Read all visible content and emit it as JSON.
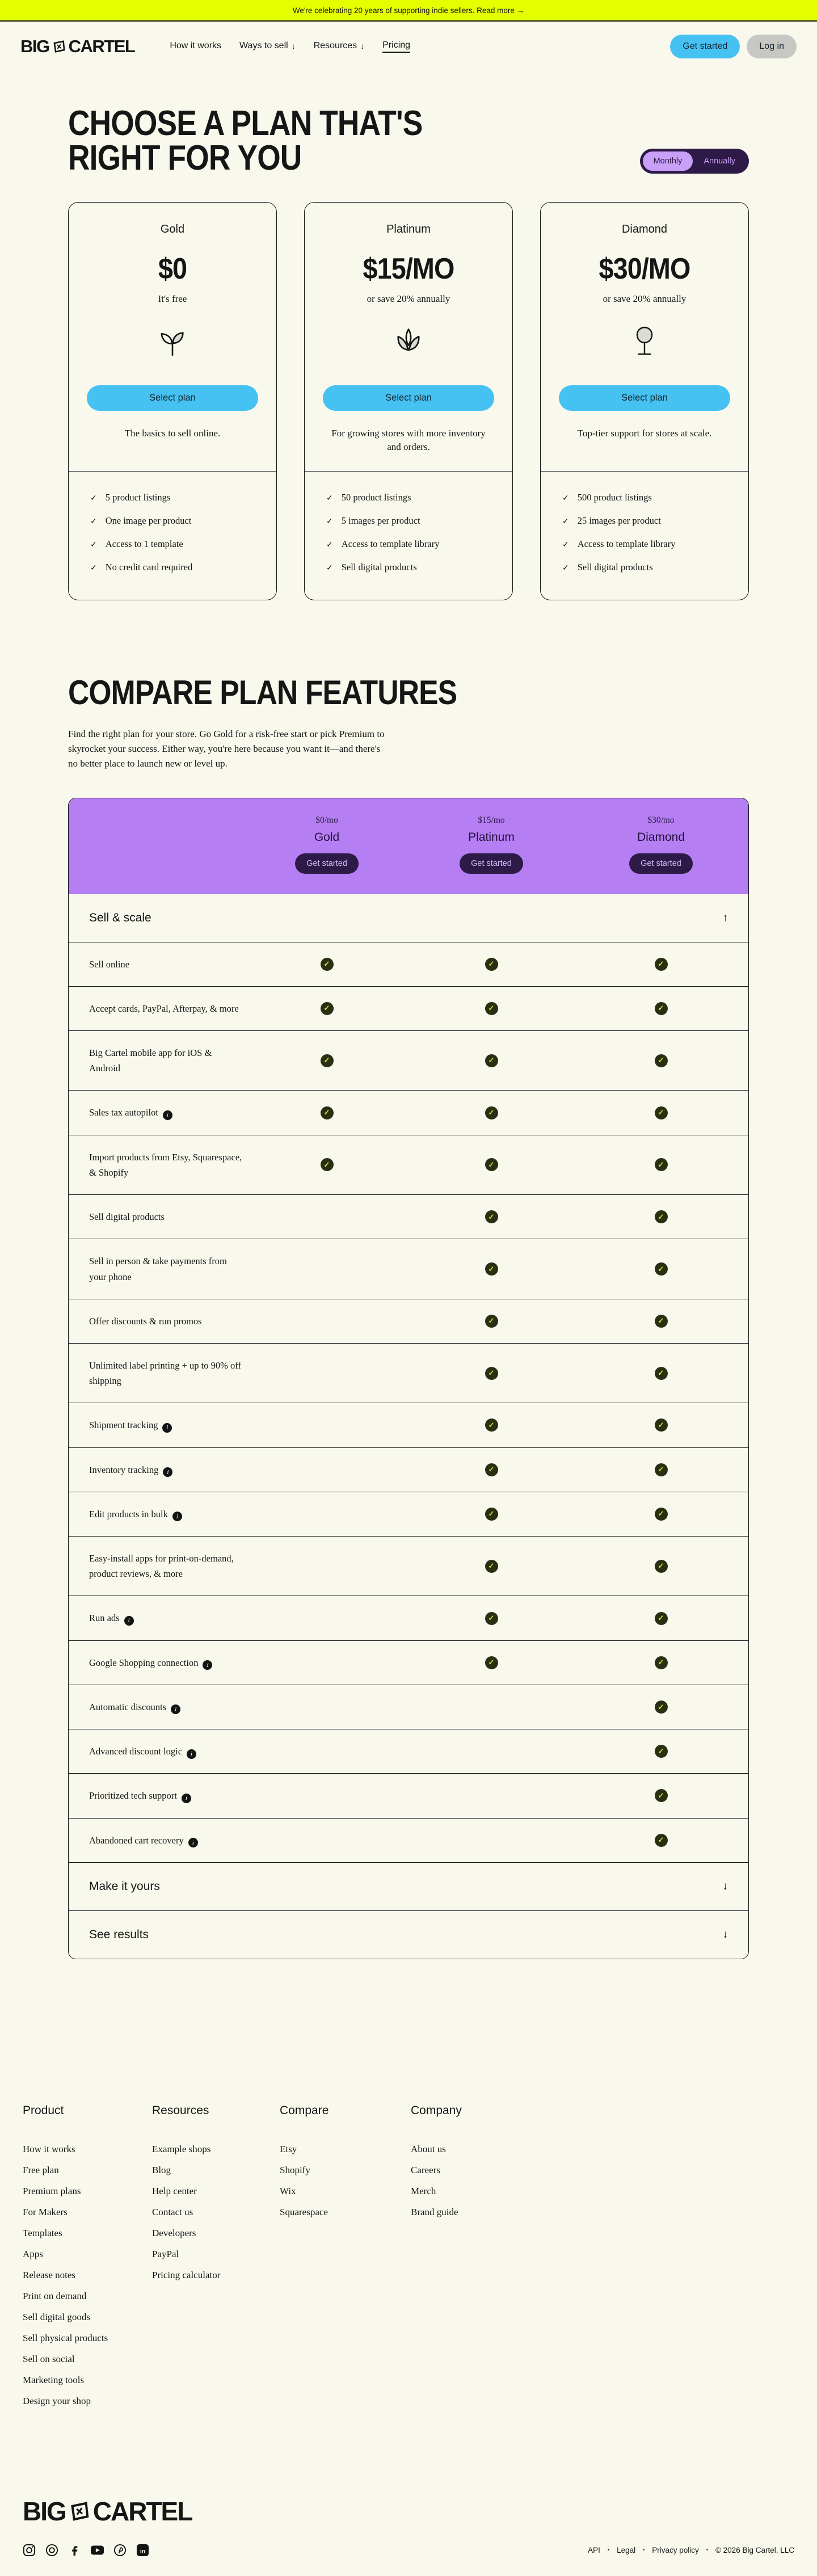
{
  "banner": {
    "text": "We're celebrating 20 years of supporting indie sellers. Read more →"
  },
  "header": {
    "logo_left": "BIG",
    "logo_right": "CARTEL",
    "nav": [
      {
        "label": "How it works",
        "dropdown": false,
        "active": false
      },
      {
        "label": "Ways to sell",
        "dropdown": true,
        "active": false
      },
      {
        "label": "Resources",
        "dropdown": true,
        "active": false
      },
      {
        "label": "Pricing",
        "dropdown": false,
        "active": true
      }
    ],
    "get_started": "Get started",
    "log_in": "Log in"
  },
  "hero": {
    "title_line1": "CHOOSE A PLAN THAT'S",
    "title_line2": "RIGHT FOR YOU",
    "toggle": {
      "options": [
        "Monthly",
        "Annually"
      ],
      "selected": "Monthly"
    }
  },
  "plans": [
    {
      "name": "Gold",
      "price": "$0",
      "note": "It's free",
      "icon": "seedling-icon",
      "cta": "Select plan",
      "description": "The basics to sell online.",
      "features": [
        "5 product listings",
        "One image per product",
        "Access to 1 template",
        "No credit card required"
      ]
    },
    {
      "name": "Platinum",
      "price": "$15/MO",
      "note": "or save 20% annually",
      "icon": "lotus-icon",
      "cta": "Select plan",
      "description": "For growing stores with more inventory and orders.",
      "features": [
        "50 product listings",
        "5 images per product",
        "Access to template library",
        "Sell digital products"
      ]
    },
    {
      "name": "Diamond",
      "price": "$30/MO",
      "note": "or save 20% annually",
      "icon": "tree-icon",
      "cta": "Select plan",
      "description": "Top-tier support for stores at scale.",
      "features": [
        "500 product listings",
        "25 images per product",
        "Access to template library",
        "Sell digital products"
      ]
    }
  ],
  "compare": {
    "title": "COMPARE PLAN FEATURES",
    "description": "Find the right plan for your store. Go Gold for a risk-free start or pick Premium to skyrocket your success. Either way, you're here because you want it—and there's no better place to launch new or level up.",
    "columns": [
      {
        "price": "$0/mo",
        "name": "Gold",
        "cta": "Get started"
      },
      {
        "price": "$15/mo",
        "name": "Platinum",
        "cta": "Get started"
      },
      {
        "price": "$30/mo",
        "name": "Diamond",
        "cta": "Get started"
      }
    ],
    "sections": [
      {
        "label": "Sell & scale",
        "expanded": true,
        "rows": [
          {
            "label": "Sell online",
            "info": false,
            "plans": [
              1,
              1,
              1
            ]
          },
          {
            "label": "Accept cards, PayPal, Afterpay, & more",
            "info": false,
            "plans": [
              1,
              1,
              1
            ]
          },
          {
            "label": "Big Cartel mobile app for iOS & Android",
            "info": false,
            "plans": [
              1,
              1,
              1
            ]
          },
          {
            "label": "Sales tax autopilot",
            "info": true,
            "plans": [
              1,
              1,
              1
            ]
          },
          {
            "label": "Import products from Etsy, Squarespace, & Shopify",
            "info": false,
            "plans": [
              1,
              1,
              1
            ]
          },
          {
            "label": "Sell digital products",
            "info": false,
            "plans": [
              0,
              1,
              1
            ]
          },
          {
            "label": "Sell in person & take payments from your phone",
            "info": false,
            "plans": [
              0,
              1,
              1
            ]
          },
          {
            "label": "Offer discounts & run promos",
            "info": false,
            "plans": [
              0,
              1,
              1
            ]
          },
          {
            "label": "Unlimited label printing + up to 90% off shipping",
            "info": false,
            "plans": [
              0,
              1,
              1
            ]
          },
          {
            "label": "Shipment tracking",
            "info": true,
            "plans": [
              0,
              1,
              1
            ]
          },
          {
            "label": "Inventory tracking",
            "info": true,
            "plans": [
              0,
              1,
              1
            ]
          },
          {
            "label": "Edit products in bulk",
            "info": true,
            "plans": [
              0,
              1,
              1
            ]
          },
          {
            "label": "Easy-install apps for print-on-demand, product reviews, & more",
            "info": false,
            "plans": [
              0,
              1,
              1
            ]
          },
          {
            "label": "Run ads",
            "info": true,
            "plans": [
              0,
              1,
              1
            ]
          },
          {
            "label": "Google Shopping connection",
            "info": true,
            "plans": [
              0,
              1,
              1
            ]
          },
          {
            "label": "Automatic discounts",
            "info": true,
            "plans": [
              0,
              0,
              1
            ]
          },
          {
            "label": "Advanced discount logic",
            "info": true,
            "plans": [
              0,
              0,
              1
            ]
          },
          {
            "label": "Prioritized tech support",
            "info": true,
            "plans": [
              0,
              0,
              1
            ]
          },
          {
            "label": "Abandoned cart recovery",
            "info": true,
            "plans": [
              0,
              0,
              1
            ]
          }
        ]
      },
      {
        "label": "Make it yours",
        "expanded": false,
        "rows": []
      },
      {
        "label": "See results",
        "expanded": false,
        "rows": []
      }
    ]
  },
  "footer": {
    "columns": [
      {
        "heading": "Product",
        "links": [
          "How it works",
          "Free plan",
          "Premium plans",
          "For Makers",
          "Templates",
          "Apps",
          "Release notes",
          "Print on demand",
          "Sell digital goods",
          "Sell physical products",
          "Sell on social",
          "Marketing tools",
          "Design your shop"
        ]
      },
      {
        "heading": "Resources",
        "links": [
          "Example shops",
          "Blog",
          "Help center",
          "Contact us",
          "Developers",
          "PayPal",
          "Pricing calculator"
        ]
      },
      {
        "heading": "Compare",
        "links": [
          "Etsy",
          "Shopify",
          "Wix",
          "Squarespace"
        ]
      },
      {
        "heading": "Company",
        "links": [
          "About us",
          "Careers",
          "Merch",
          "Brand guide"
        ]
      }
    ]
  },
  "bottom": {
    "logo_left": "BIG",
    "logo_right": "CARTEL",
    "social": [
      "instagram-icon",
      "threads-icon",
      "facebook-icon",
      "youtube-icon",
      "pinterest-icon",
      "linkedin-icon"
    ],
    "legal_links": [
      "API",
      "Legal",
      "Privacy policy"
    ],
    "copyright": "© 2026 Big Cartel, LLC"
  },
  "colors": {
    "background": "#f9f8ed",
    "banner": "#e3ff00",
    "accent_cyan": "#45c2f2",
    "table_header_purple": "#b67ef3",
    "dark_purple": "#2e1a47",
    "lavender": "#c9a0f8",
    "check_circle": "#2b2f12",
    "check_mark": "#bdeb2e"
  }
}
